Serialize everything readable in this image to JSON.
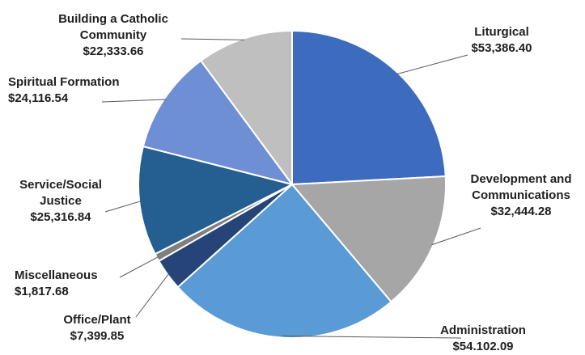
{
  "chart_data": {
    "type": "pie",
    "slices": [
      {
        "label": "Liturgical",
        "value_label": "$53,386.40",
        "value": 53386.4,
        "color": "#3d6bbd"
      },
      {
        "label": "Development and Communications",
        "value_label": "$32,444.28",
        "value": 32444.28,
        "color": "#a6a6a6"
      },
      {
        "label": "Administration",
        "value_label": "$54.102.09",
        "value": 54102.09,
        "color": "#5b9bd5"
      },
      {
        "label": "Office/Plant",
        "value_label": "$7,399.85",
        "value": 7399.85,
        "color": "#264478"
      },
      {
        "label": "Miscellaneous",
        "value_label": "$1,817.68",
        "value": 1817.68,
        "color": "#7f7f7f"
      },
      {
        "label": "Service/Social Justice",
        "value_label": "$25,316.84",
        "value": 25316.84,
        "color": "#255e91"
      },
      {
        "label": "Spiritual Formation",
        "value_label": "$24,116.54",
        "value": 24116.54,
        "color": "#6f8fd4"
      },
      {
        "label": "Building a Catholic Community",
        "value_label": "$22,333.66",
        "value": 22333.66,
        "color": "#bfbfbf"
      }
    ],
    "legend": "none"
  }
}
